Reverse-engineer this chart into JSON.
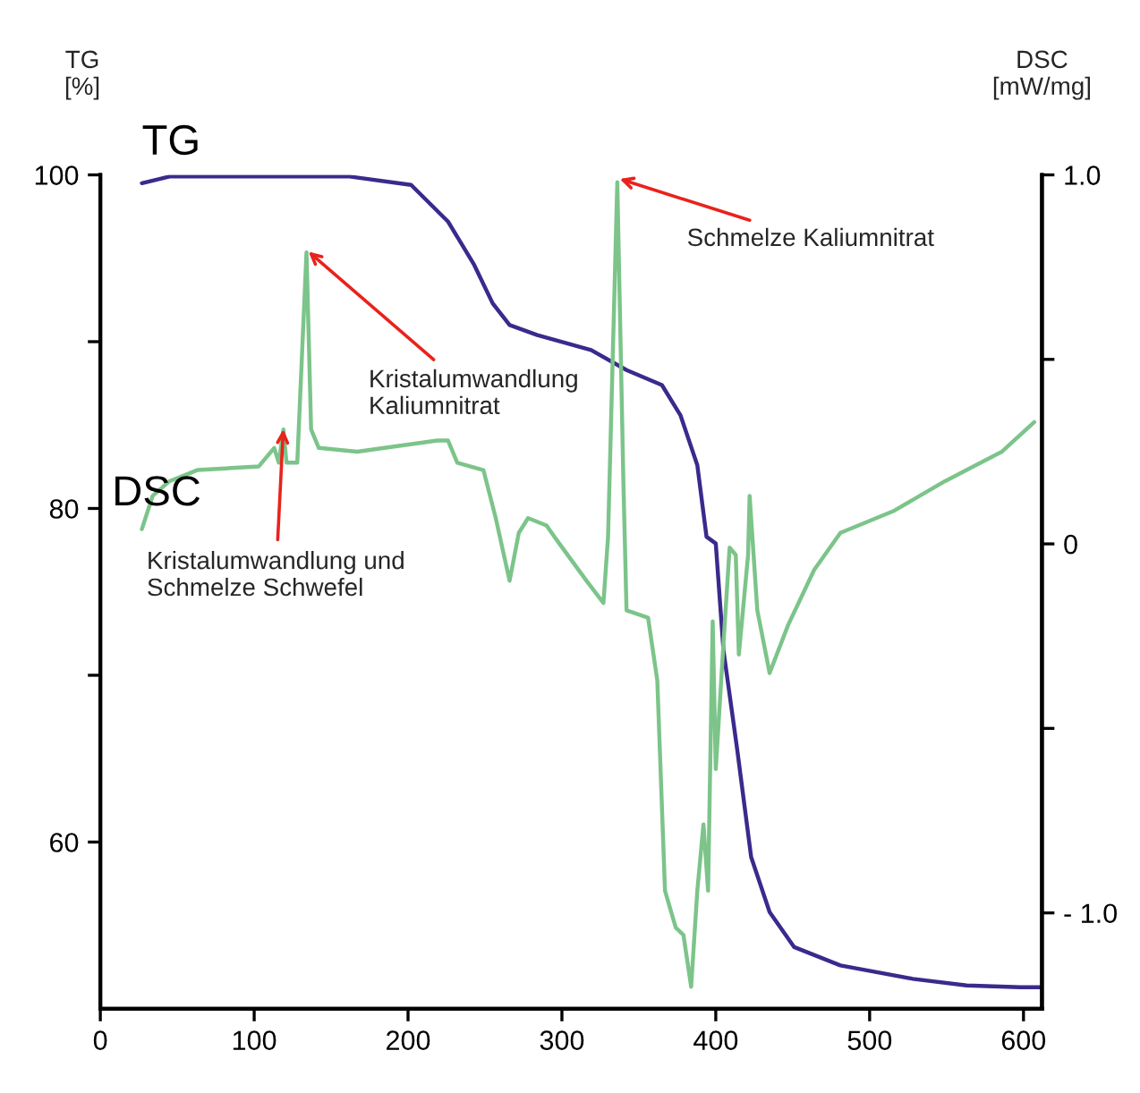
{
  "chart_data": {
    "type": "line",
    "ylabel": "TG\n[%]",
    "y2label": "DSC\n[mW/mg]",
    "xlim": [
      0,
      612
    ],
    "xticks": [
      0,
      100,
      200,
      300,
      400,
      500,
      600
    ],
    "ylim": [
      50,
      100
    ],
    "yticks": [
      60,
      {
        "value": 70,
        "label": null
      },
      80,
      {
        "value": 90,
        "label": null
      },
      100
    ],
    "y2lim": [
      -1.26,
      1.0
    ],
    "y2ticks": [
      {
        "value": -1.0,
        "label": "- 1.0"
      },
      {
        "value": -0.5,
        "label": null
      },
      0,
      {
        "value": 0.5,
        "label": null
      },
      {
        "value": 1.0,
        "label": "1.0"
      }
    ],
    "grid": false,
    "legend": false,
    "line_style": "solid",
    "marker": "none",
    "series": [
      {
        "name": "TG",
        "color": "#3a2a8c",
        "x": [
          27,
          45,
          100,
          162,
          202,
          226,
          243,
          255,
          266,
          284,
          319,
          342,
          365,
          377,
          388,
          394,
          400,
          405,
          414,
          423,
          435,
          451,
          481,
          528,
          563,
          598,
          612
        ],
        "values": [
          99.5,
          99.9,
          99.9,
          99.9,
          99.4,
          97.2,
          94.6,
          92.3,
          91.0,
          90.4,
          89.5,
          88.3,
          87.4,
          85.6,
          82.6,
          78.3,
          77.9,
          71.5,
          65.5,
          59.1,
          55.8,
          53.7,
          52.6,
          51.8,
          51.4,
          51.3,
          51.3
        ]
      },
      {
        "name": "DSC",
        "color": "#7cc48a",
        "axis": "y2",
        "x": [
          27,
          34,
          45,
          63,
          103,
          113,
          116,
          119,
          121,
          128,
          134,
          137,
          142,
          167,
          219,
          226,
          232,
          249,
          257,
          266,
          272,
          278,
          290,
          295,
          316,
          327,
          330,
          336,
          340,
          342,
          356,
          362,
          367,
          374,
          379,
          384,
          388,
          392,
          395,
          398,
          400,
          405,
          409,
          413,
          415,
          421,
          422,
          427,
          435,
          447,
          464,
          481,
          516,
          549,
          586,
          607
        ],
        "values": [
          0.04,
          0.13,
          0.17,
          0.2,
          0.21,
          0.26,
          0.22,
          0.31,
          0.22,
          0.22,
          0.79,
          0.31,
          0.26,
          0.25,
          0.28,
          0.28,
          0.22,
          0.2,
          0.07,
          -0.1,
          0.03,
          0.07,
          0.05,
          0.02,
          -0.1,
          -0.16,
          0.02,
          0.98,
          0.16,
          -0.18,
          -0.2,
          -0.37,
          -0.94,
          -1.04,
          -1.06,
          -1.2,
          -0.94,
          -0.76,
          -0.94,
          -0.21,
          -0.61,
          -0.27,
          -0.01,
          -0.03,
          -0.3,
          -0.03,
          0.13,
          -0.18,
          -0.35,
          -0.22,
          -0.07,
          0.03,
          0.09,
          0.17,
          0.25,
          0.33
        ]
      }
    ],
    "annotations": [
      {
        "text": "Schmelze Kaliumnitrat",
        "x": 336,
        "y": 99.8
      },
      {
        "text": "Kristalumwandlung\nKaliumnitrat",
        "x": 134,
        "y": 95.5
      },
      {
        "text": "Kristalumwandlung und\nSchmelze Schwefel",
        "x": 119,
        "y": 84.9
      }
    ]
  }
}
